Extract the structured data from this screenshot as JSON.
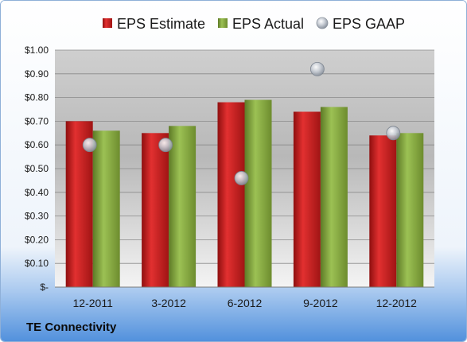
{
  "footer": {
    "company": "TE Connectivity"
  },
  "colors": {
    "eps_estimate": "#c81e1e",
    "eps_actual": "#7fa03a",
    "eps_gaap": "#b7bec8",
    "background_top": "#ffffff",
    "background_bottom": "#4f8fdc"
  },
  "chart_data": {
    "type": "bar",
    "categories": [
      "12-2011",
      "3-2012",
      "6-2012",
      "9-2012",
      "12-2012"
    ],
    "series": [
      {
        "name": "EPS Estimate",
        "kind": "bar",
        "color": "#c81e1e",
        "values": [
          0.7,
          0.65,
          0.78,
          0.74,
          0.64
        ]
      },
      {
        "name": "EPS Actual",
        "kind": "bar",
        "color": "#7fa03a",
        "values": [
          0.66,
          0.68,
          0.79,
          0.76,
          0.65
        ]
      },
      {
        "name": "EPS GAAP",
        "kind": "scatter",
        "color": "#b7bec8",
        "values": [
          0.6,
          0.6,
          0.46,
          0.92,
          0.65
        ]
      }
    ],
    "ylim": [
      0,
      1.0
    ],
    "yticks": [
      0,
      0.1,
      0.2,
      0.3,
      0.4,
      0.5,
      0.6,
      0.7,
      0.8,
      0.9,
      1.0
    ],
    "ytick_labels": [
      "$-",
      "$0.10",
      "$0.20",
      "$0.30",
      "$0.40",
      "$0.50",
      "$0.60",
      "$0.70",
      "$0.80",
      "$0.90",
      "$1.00"
    ],
    "grid": true,
    "legend": "top"
  }
}
